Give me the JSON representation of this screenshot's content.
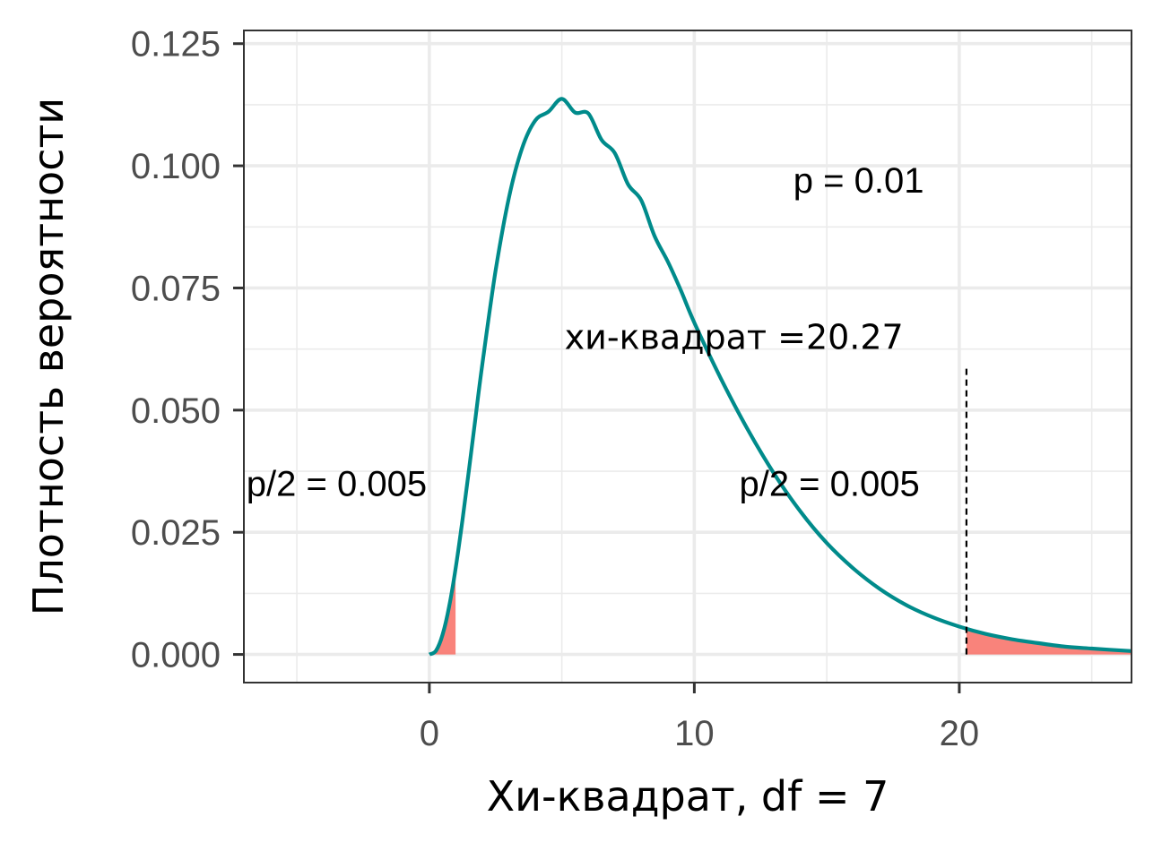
{
  "chart_data": {
    "type": "line",
    "title": "",
    "xlabel": "Хи-квадрат, df = 7",
    "ylabel": "Плотность вероятности",
    "xlim": [
      -7,
      26.5
    ],
    "ylim": [
      -0.00576,
      0.1277
    ],
    "x_ticks": [
      0,
      10,
      20
    ],
    "x_tick_labels": [
      "0",
      "10",
      "20"
    ],
    "y_ticks": [
      0,
      0.025,
      0.05,
      0.075,
      0.1,
      0.125
    ],
    "y_tick_labels": [
      "0.000",
      "0.025",
      "0.050",
      "0.075",
      "0.100",
      "0.125"
    ],
    "grid": true,
    "df": 7,
    "series": [
      {
        "color": "#008b8b",
        "x": [
          0,
          0.25,
          0.5,
          0.75,
          1,
          1.25,
          1.5,
          1.75,
          2,
          2.5,
          3,
          3.5,
          4,
          4.5,
          5,
          5.5,
          6,
          6.5,
          7,
          7.5,
          8,
          8.5,
          9,
          9.5,
          10,
          11,
          12,
          13,
          14,
          15,
          16,
          17,
          18,
          19,
          20,
          21,
          22,
          23,
          24,
          25,
          26.5
        ],
        "y": [
          0,
          0.00077,
          0.00405,
          0.00988,
          0.01791,
          0.0275,
          0.038,
          0.04882,
          0.05946,
          0.07851,
          0.09339,
          0.1036,
          0.1093,
          0.1111,
          0.1137,
          0.1109,
          0.1107,
          0.1053,
          0.1026,
          0.0962,
          0.0929,
          0.0856,
          0.0804,
          0.0744,
          0.0679,
          0.0565,
          0.0462,
          0.0371,
          0.0293,
          0.0228,
          0.0176,
          0.0134,
          0.0101,
          0.0076,
          0.0057,
          0.0042,
          0.0031,
          0.0023,
          0.0016,
          0.0012,
          0.0007
        ]
      }
    ],
    "shaded_regions": [
      {
        "from": 0,
        "to": 0.989,
        "color": "#f8766d"
      },
      {
        "from": 20.27,
        "to": 26.5,
        "color": "#f8766d"
      }
    ],
    "critical_line": {
      "x": 20.27,
      "y_top": 0.059
    },
    "annotations": [
      {
        "text": "p = 0.01",
        "x": 16.2,
        "y": 0.0945,
        "anchor": "middle"
      },
      {
        "text": "хи-квадрат =20.27",
        "x": 11.5,
        "y": 0.0625,
        "anchor": "middle"
      },
      {
        "text": "p/2 = 0.005",
        "x": 15.1,
        "y": 0.0325,
        "anchor": "middle"
      },
      {
        "text": "p/2 = 0.005",
        "x": -3.5,
        "y": 0.0325,
        "anchor": "middle"
      }
    ]
  }
}
